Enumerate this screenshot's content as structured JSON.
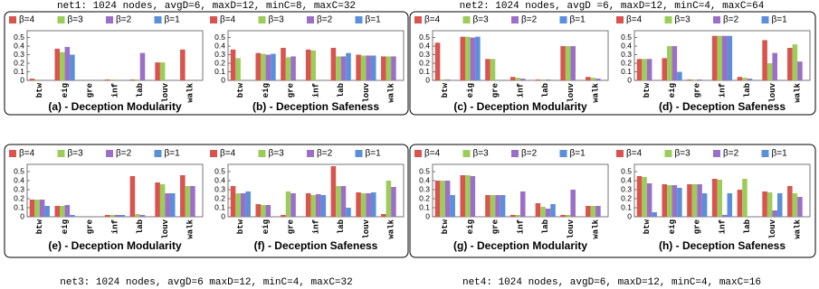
{
  "network_labels": [
    "net1: 1024 nodes, avgD=6, maxD=12, minC=8, maxC=32",
    "net2: 1024 nodes, avgD =6, maxD=12, minC=4, maxC=64",
    "net3: 1024 nodes, avgD=6 maxD=12, minC=4, maxC=32",
    "net4: 1024 nodes, avgD=6, maxD=12, minC=4, maxC=16"
  ],
  "chart_data": [
    {
      "type": "bar",
      "title": "(a) - Deception Modularity",
      "categories": [
        "btw",
        "eig",
        "gre",
        "inf",
        "lab",
        "louv",
        "walk"
      ],
      "ylim": [
        0,
        0.58
      ],
      "yticks": [
        0,
        0.1,
        0.2,
        0.3,
        0.4,
        0.5
      ],
      "series": [
        {
          "name": "β=4",
          "color": "#d9534f",
          "values": [
            0.02,
            0.37,
            0,
            0.01,
            0.01,
            0.21,
            0.36
          ]
        },
        {
          "name": "β=3",
          "color": "#9ccc5a",
          "values": [
            0.01,
            0.33,
            0,
            0.01,
            0.01,
            0.21,
            0
          ]
        },
        {
          "name": "β=2",
          "color": "#9b6fc6",
          "values": [
            0,
            0.39,
            0,
            0,
            0.32,
            0,
            0
          ]
        },
        {
          "name": "β=1",
          "color": "#5b8fd9",
          "values": [
            0,
            0.3,
            0,
            0,
            0,
            0,
            0
          ]
        }
      ]
    },
    {
      "type": "bar",
      "title": "(b) - Deception Safeness",
      "categories": [
        "btw",
        "eig",
        "gre",
        "inf",
        "lab",
        "louv",
        "walk"
      ],
      "ylim": [
        0,
        0.58
      ],
      "yticks": [
        0,
        0.1,
        0.2,
        0.3,
        0.4,
        0.5
      ],
      "series": [
        {
          "name": "β=4",
          "color": "#d9534f",
          "values": [
            0.36,
            0.32,
            0.38,
            0.36,
            0.38,
            0.3,
            0.28
          ]
        },
        {
          "name": "β=3",
          "color": "#9ccc5a",
          "values": [
            0.26,
            0.31,
            0.27,
            0.35,
            0.28,
            0.29,
            0.28
          ]
        },
        {
          "name": "β=2",
          "color": "#9b6fc6",
          "values": [
            0,
            0.3,
            0.28,
            0,
            0.28,
            0.29,
            0.28
          ]
        },
        {
          "name": "β=1",
          "color": "#5b8fd9",
          "values": [
            0,
            0.31,
            0,
            0,
            0.32,
            0.29,
            0
          ]
        }
      ]
    },
    {
      "type": "bar",
      "title": "(c) - Deception Modularity",
      "categories": [
        "btw",
        "eig",
        "gre",
        "inf",
        "lab",
        "louv",
        "walk"
      ],
      "ylim": [
        0,
        0.58
      ],
      "yticks": [
        0,
        0.1,
        0.2,
        0.3,
        0.4,
        0.5
      ],
      "series": [
        {
          "name": "β=4",
          "color": "#d9534f",
          "values": [
            0.44,
            0.51,
            0.25,
            0.04,
            0.01,
            0.4,
            0.04
          ]
        },
        {
          "name": "β=3",
          "color": "#9ccc5a",
          "values": [
            0.01,
            0.51,
            0.25,
            0.03,
            0.01,
            0.4,
            0.03
          ]
        },
        {
          "name": "β=2",
          "color": "#9b6fc6",
          "values": [
            0.01,
            0.5,
            0,
            0.02,
            0.01,
            0.4,
            0.02
          ]
        },
        {
          "name": "β=1",
          "color": "#5b8fd9",
          "values": [
            0,
            0.51,
            0,
            0,
            0,
            0,
            0
          ]
        }
      ]
    },
    {
      "type": "bar",
      "title": "(d) - Deception Safeness",
      "categories": [
        "btw",
        "eig",
        "gre",
        "inf",
        "lab",
        "louv",
        "walk"
      ],
      "ylim": [
        0,
        0.58
      ],
      "yticks": [
        0,
        0.1,
        0.2,
        0.3,
        0.4,
        0.5
      ],
      "series": [
        {
          "name": "β=4",
          "color": "#d9534f",
          "values": [
            0.25,
            0.26,
            0.01,
            0.52,
            0.04,
            0.47,
            0.38
          ]
        },
        {
          "name": "β=3",
          "color": "#9ccc5a",
          "values": [
            0.25,
            0.4,
            0.01,
            0.52,
            0.03,
            0.2,
            0.42
          ]
        },
        {
          "name": "β=2",
          "color": "#9b6fc6",
          "values": [
            0.25,
            0.4,
            0.01,
            0.52,
            0.02,
            0.32,
            0.22
          ]
        },
        {
          "name": "β=1",
          "color": "#5b8fd9",
          "values": [
            0,
            0.1,
            0,
            0.52,
            0,
            0,
            0
          ]
        }
      ]
    },
    {
      "type": "bar",
      "title": "(e) - Deception Modularity",
      "categories": [
        "btw",
        "eig",
        "gre",
        "inf",
        "lab",
        "louv",
        "walk"
      ],
      "ylim": [
        0,
        0.58
      ],
      "yticks": [
        0,
        0.1,
        0.2,
        0.3,
        0.4,
        0.5
      ],
      "series": [
        {
          "name": "β=4",
          "color": "#d9534f",
          "values": [
            0.19,
            0.12,
            0,
            0.02,
            0.45,
            0.38,
            0.46
          ]
        },
        {
          "name": "β=3",
          "color": "#9ccc5a",
          "values": [
            0.19,
            0.12,
            0,
            0.02,
            0.03,
            0.36,
            0.34
          ]
        },
        {
          "name": "β=2",
          "color": "#9b6fc6",
          "values": [
            0.19,
            0.13,
            0,
            0.02,
            0.02,
            0.26,
            0.34
          ]
        },
        {
          "name": "β=1",
          "color": "#5b8fd9",
          "values": [
            0.12,
            0.02,
            0,
            0.02,
            0,
            0.26,
            0
          ]
        }
      ]
    },
    {
      "type": "bar",
      "title": "(f) - Deception Safeness",
      "categories": [
        "btw",
        "eig",
        "gre",
        "inf",
        "lab",
        "louv",
        "walk"
      ],
      "ylim": [
        0,
        0.58
      ],
      "yticks": [
        0,
        0.1,
        0.2,
        0.3,
        0.4,
        0.5
      ],
      "series": [
        {
          "name": "β=4",
          "color": "#d9534f",
          "values": [
            0.34,
            0.14,
            0.02,
            0.26,
            0.56,
            0.27,
            0.03
          ]
        },
        {
          "name": "β=3",
          "color": "#9ccc5a",
          "values": [
            0.26,
            0.13,
            0.28,
            0.24,
            0.34,
            0.26,
            0.4
          ]
        },
        {
          "name": "β=2",
          "color": "#9b6fc6",
          "values": [
            0.26,
            0.13,
            0.26,
            0.25,
            0.34,
            0.26,
            0.33
          ]
        },
        {
          "name": "β=1",
          "color": "#5b8fd9",
          "values": [
            0.28,
            0,
            0,
            0.24,
            0.1,
            0.27,
            0
          ]
        }
      ]
    },
    {
      "type": "bar",
      "title": "(g) - Deception Modularity",
      "categories": [
        "btw",
        "eig",
        "gre",
        "inf",
        "lab",
        "louv",
        "walk"
      ],
      "ylim": [
        0,
        0.58
      ],
      "yticks": [
        0,
        0.1,
        0.2,
        0.3,
        0.4,
        0.5
      ],
      "series": [
        {
          "name": "β=4",
          "color": "#d9534f",
          "values": [
            0.4,
            0.46,
            0.24,
            0.02,
            0.15,
            0.02,
            0.12
          ]
        },
        {
          "name": "β=3",
          "color": "#9ccc5a",
          "values": [
            0.4,
            0.46,
            0.24,
            0.02,
            0.11,
            0.02,
            0.12
          ]
        },
        {
          "name": "β=2",
          "color": "#9b6fc6",
          "values": [
            0.4,
            0.45,
            0.24,
            0.28,
            0.09,
            0.3,
            0.12
          ]
        },
        {
          "name": "β=1",
          "color": "#5b8fd9",
          "values": [
            0.24,
            0,
            0.24,
            0,
            0.14,
            0,
            0
          ]
        }
      ]
    },
    {
      "type": "bar",
      "title": "(h) - Deception Safeness",
      "categories": [
        "btw",
        "eig",
        "gre",
        "inf",
        "lab",
        "louv",
        "walk"
      ],
      "ylim": [
        0,
        0.58
      ],
      "yticks": [
        0,
        0.1,
        0.2,
        0.3,
        0.4,
        0.5
      ],
      "series": [
        {
          "name": "β=4",
          "color": "#d9534f",
          "values": [
            0.45,
            0.36,
            0.36,
            0.42,
            0.3,
            0.28,
            0.34
          ]
        },
        {
          "name": "β=3",
          "color": "#9ccc5a",
          "values": [
            0.44,
            0.35,
            0.36,
            0.41,
            0.42,
            0.27,
            0.26
          ]
        },
        {
          "name": "β=2",
          "color": "#9b6fc6",
          "values": [
            0.37,
            0.35,
            0.36,
            0.02,
            0,
            0.07,
            0.22
          ]
        },
        {
          "name": "β=1",
          "color": "#5b8fd9",
          "values": [
            0.05,
            0.32,
            0.26,
            0.26,
            0,
            0.26,
            0
          ]
        }
      ]
    }
  ]
}
